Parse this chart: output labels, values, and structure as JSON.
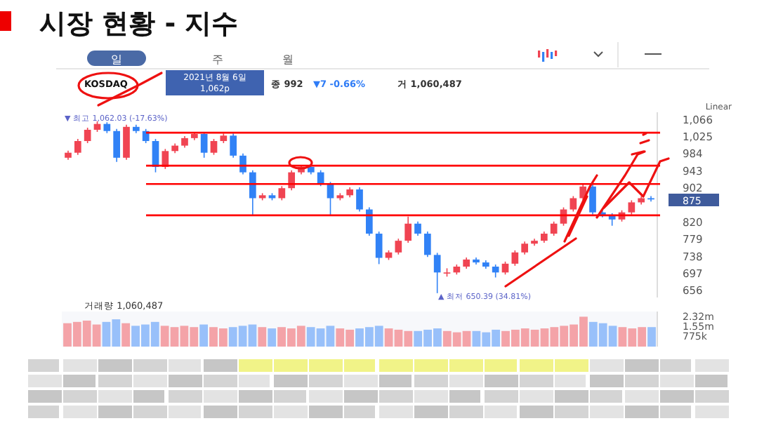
{
  "chart_data": [
    {
      "type": "candlestick",
      "title": "시장 현황 - 지수",
      "categories": [
        null,
        null,
        null,
        null,
        null,
        null,
        null,
        null,
        null,
        null,
        null,
        null,
        null,
        null,
        null,
        null,
        null,
        null,
        null,
        null,
        null,
        null,
        null,
        null,
        null,
        null,
        null,
        null,
        null,
        null,
        null,
        null,
        null,
        null,
        null,
        null,
        null,
        null,
        null,
        null,
        null,
        null,
        null,
        null,
        null,
        null,
        null,
        null,
        null,
        null,
        null,
        null,
        null,
        null,
        null,
        null,
        null,
        null,
        null,
        null,
        null
      ],
      "ohlc": [
        [
          975,
          992,
          970,
          987
        ],
        [
          987,
          1020,
          982,
          1015
        ],
        [
          1015,
          1047,
          1010,
          1042
        ],
        [
          1042,
          1062.03,
          1037,
          1056
        ],
        [
          1056,
          1060,
          1034,
          1039
        ],
        [
          1039,
          1044,
          965,
          975
        ],
        [
          975,
          1054,
          970,
          1049
        ],
        [
          1049,
          1054,
          1034,
          1039
        ],
        [
          1039,
          1044,
          1010,
          1015
        ],
        [
          1015,
          1020,
          940,
          953
        ],
        [
          953,
          996,
          948,
          991
        ],
        [
          991,
          1009,
          986,
          1004
        ],
        [
          1004,
          1027,
          999,
          1022
        ],
        [
          1022,
          1037,
          1017,
          1032
        ],
        [
          1032,
          1037,
          975,
          987
        ],
        [
          987,
          1020,
          982,
          1015
        ],
        [
          1015,
          1033,
          1010,
          1028
        ],
        [
          1028,
          1033,
          975,
          980
        ],
        [
          980,
          985,
          935,
          940
        ],
        [
          940,
          945,
          837,
          878
        ],
        [
          878,
          890,
          873,
          885
        ],
        [
          885,
          890,
          873,
          878
        ],
        [
          878,
          907,
          873,
          902
        ],
        [
          902,
          945,
          897,
          940
        ],
        [
          940,
          958,
          935,
          953
        ],
        [
          953,
          958,
          935,
          940
        ],
        [
          940,
          945,
          907,
          912
        ],
        [
          912,
          917,
          837,
          878
        ],
        [
          878,
          890,
          873,
          885
        ],
        [
          885,
          904,
          880,
          899
        ],
        [
          899,
          904,
          846,
          851
        ],
        [
          851,
          856,
          788,
          793
        ],
        [
          793,
          798,
          720,
          735
        ],
        [
          735,
          753,
          730,
          748
        ],
        [
          748,
          781,
          743,
          776
        ],
        [
          776,
          834,
          771,
          817
        ],
        [
          817,
          822,
          788,
          793
        ],
        [
          793,
          798,
          737,
          742
        ],
        [
          742,
          747,
          650.39,
          700
        ],
        [
          700,
          710,
          690,
          700
        ],
        [
          700,
          719,
          695,
          714
        ],
        [
          714,
          736,
          709,
          731
        ],
        [
          731,
          736,
          719,
          724
        ],
        [
          724,
          729,
          709,
          714
        ],
        [
          714,
          719,
          688,
          700
        ],
        [
          700,
          726,
          695,
          721
        ],
        [
          721,
          753,
          716,
          748
        ],
        [
          748,
          774,
          743,
          769
        ],
        [
          769,
          781,
          764,
          776
        ],
        [
          776,
          798,
          771,
          793
        ],
        [
          793,
          822,
          788,
          817
        ],
        [
          817,
          856,
          812,
          851
        ],
        [
          851,
          883,
          846,
          878
        ],
        [
          878,
          911,
          873,
          906
        ],
        [
          906,
          911,
          839,
          844
        ],
        [
          844,
          849,
          832,
          837
        ],
        [
          837,
          842,
          812,
          827
        ],
        [
          827,
          849,
          822,
          844
        ],
        [
          844,
          873,
          839,
          868
        ],
        [
          868,
          883,
          863,
          878
        ],
        [
          878,
          883,
          870,
          875
        ]
      ],
      "colors": [
        "#f04452",
        "#f04452",
        "#f04452",
        "#f04452",
        "#3182f6",
        "#3182f6",
        "#f04452",
        "#3182f6",
        "#3182f6",
        "#3182f6",
        "#f04452",
        "#f04452",
        "#f04452",
        "#f04452",
        "#3182f6",
        "#f04452",
        "#f04452",
        "#3182f6",
        "#3182f6",
        "#3182f6",
        "#f04452",
        "#3182f6",
        "#f04452",
        "#f04452",
        "#f04452",
        "#3182f6",
        "#3182f6",
        "#3182f6",
        "#f04452",
        "#f04452",
        "#3182f6",
        "#3182f6",
        "#3182f6",
        "#f04452",
        "#f04452",
        "#f04452",
        "#3182f6",
        "#3182f6",
        "#3182f6",
        "#f04452",
        "#f04452",
        "#f04452",
        "#3182f6",
        "#3182f6",
        "#3182f6",
        "#f04452",
        "#f04452",
        "#f04452",
        "#f04452",
        "#f04452",
        "#f04452",
        "#f04452",
        "#f04452",
        "#f04452",
        "#3182f6",
        "#3182f6",
        "#3182f6",
        "#f04452",
        "#f04452",
        "#f04452",
        "#3182f6"
      ],
      "ylim": [
        640,
        1084
      ],
      "yticks": [
        656,
        697,
        738,
        779,
        820,
        902,
        943,
        984,
        {
          "value": 1025,
          "label": "1,025"
        },
        {
          "value": 1066,
          "label": "1,066"
        }
      ],
      "ref_lines": [
        {
          "axis": "y",
          "value": 1035,
          "color": "#ff0000"
        },
        {
          "axis": "y",
          "value": 956,
          "color": "#ff0000"
        },
        {
          "axis": "y",
          "value": 912,
          "color": "#ff0000"
        },
        {
          "axis": "y",
          "value": 837,
          "color": "#ff0000"
        }
      ],
      "annotations": [
        "일",
        "주",
        "월",
        "KOSDAQ",
        "2021년 8월 6일",
        "1,062p",
        "종 992",
        "▼7 -0.66%",
        "거 1,060,487",
        "Linear",
        "▼ 최고 1,062.03 (-17.63%)",
        "▲ 최저 650.39 (34.81%)",
        "875"
      ]
    },
    {
      "type": "bar",
      "categories": [
        null,
        null,
        null,
        null,
        null,
        null,
        null,
        null,
        null,
        null,
        null,
        null,
        null,
        null,
        null,
        null,
        null,
        null,
        null,
        null,
        null,
        null,
        null,
        null,
        null,
        null,
        null,
        null,
        null,
        null,
        null,
        null,
        null,
        null,
        null,
        null,
        null,
        null,
        null,
        null,
        null,
        null,
        null,
        null,
        null,
        null,
        null,
        null,
        null,
        null,
        null,
        null,
        null,
        null,
        null,
        null,
        null,
        null,
        null,
        null,
        null
      ],
      "values": [
        1800000,
        1900000,
        2000000,
        1700000,
        1900000,
        2100000,
        1800000,
        1600000,
        1700000,
        1900000,
        1600000,
        1500000,
        1600000,
        1500000,
        1700000,
        1500000,
        1400000,
        1500000,
        1600000,
        1700000,
        1500000,
        1400000,
        1500000,
        1400000,
        1600000,
        1500000,
        1400000,
        1600000,
        1400000,
        1300000,
        1400000,
        1500000,
        1600000,
        1400000,
        1300000,
        1200000,
        1200000,
        1300000,
        1400000,
        1200000,
        1100000,
        1200000,
        1200000,
        1100000,
        1300000,
        1200000,
        1300000,
        1400000,
        1300000,
        1400000,
        1500000,
        1600000,
        1700000,
        2300000,
        1900000,
        1800000,
        1600000,
        1500000,
        1400000,
        1500000,
        1500000
      ],
      "colors": [
        "#f4a3a8",
        "#f4a3a8",
        "#f4a3a8",
        "#f4a3a8",
        "#98c0fa",
        "#98c0fa",
        "#f4a3a8",
        "#98c0fa",
        "#98c0fa",
        "#98c0fa",
        "#f4a3a8",
        "#f4a3a8",
        "#f4a3a8",
        "#f4a3a8",
        "#98c0fa",
        "#f4a3a8",
        "#f4a3a8",
        "#98c0fa",
        "#98c0fa",
        "#98c0fa",
        "#f4a3a8",
        "#98c0fa",
        "#f4a3a8",
        "#f4a3a8",
        "#f4a3a8",
        "#98c0fa",
        "#98c0fa",
        "#98c0fa",
        "#f4a3a8",
        "#f4a3a8",
        "#98c0fa",
        "#98c0fa",
        "#98c0fa",
        "#f4a3a8",
        "#f4a3a8",
        "#f4a3a8",
        "#98c0fa",
        "#98c0fa",
        "#98c0fa",
        "#f4a3a8",
        "#f4a3a8",
        "#f4a3a8",
        "#98c0fa",
        "#98c0fa",
        "#98c0fa",
        "#f4a3a8",
        "#f4a3a8",
        "#f4a3a8",
        "#f4a3a8",
        "#f4a3a8",
        "#f4a3a8",
        "#f4a3a8",
        "#f4a3a8",
        "#f4a3a8",
        "#98c0fa",
        "#98c0fa",
        "#98c0fa",
        "#f4a3a8",
        "#f4a3a8",
        "#f4a3a8",
        "#98c0fa"
      ],
      "ylim": [
        0,
        2700000
      ],
      "yticks": [
        {
          "value": 775000,
          "label": "775k"
        },
        {
          "value": 1550000,
          "label": "1.55m"
        },
        {
          "value": 2320000,
          "label": "2.32m"
        }
      ],
      "annotations": [
        "거래량 1,060,487"
      ]
    }
  ]
}
